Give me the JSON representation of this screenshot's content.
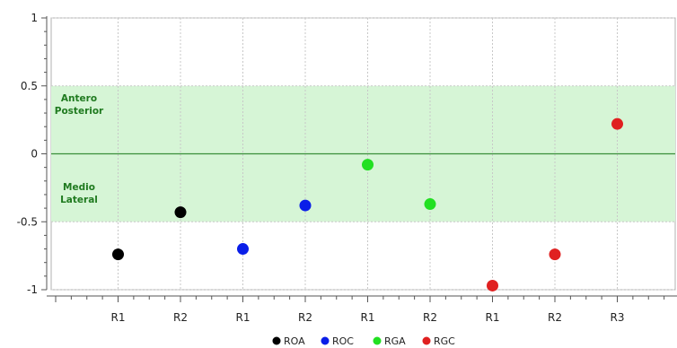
{
  "chart_data": {
    "type": "scatter",
    "ylim": [
      -1,
      1
    ],
    "yticks": [
      1,
      0.5,
      0,
      -0.5,
      -1
    ],
    "ytick_labels": [
      "1",
      "0.5",
      "0",
      "-0.5",
      "-1"
    ],
    "x_labels": [
      "R1",
      "R2",
      "R1",
      "R2",
      "R1",
      "R2",
      "R1",
      "R2",
      "R3"
    ],
    "grid": true,
    "band": {
      "from": -0.5,
      "to": 0.5,
      "color": "#d6f5d6"
    },
    "zero_line_color": "#3a8f3a",
    "annotations": [
      {
        "lines": [
          "Antero",
          "Posterior"
        ],
        "y": 0.2
      },
      {
        "lines": [
          "Medio",
          "Lateral"
        ],
        "y": -0.2
      }
    ],
    "legend_position": "bottom",
    "series": [
      {
        "name": "ROA",
        "color": "#000000",
        "points": [
          {
            "x": 1,
            "y": -0.74
          },
          {
            "x": 2,
            "y": -0.43
          }
        ]
      },
      {
        "name": "ROC",
        "color": "#0a1ee8",
        "points": [
          {
            "x": 3,
            "y": -0.7
          },
          {
            "x": 4,
            "y": -0.38
          }
        ]
      },
      {
        "name": "RGA",
        "color": "#22e022",
        "points": [
          {
            "x": 5,
            "y": -0.08
          },
          {
            "x": 6,
            "y": -0.37
          }
        ]
      },
      {
        "name": "RGC",
        "color": "#e02020",
        "points": [
          {
            "x": 7,
            "y": -0.97
          },
          {
            "x": 8,
            "y": -0.74
          },
          {
            "x": 9,
            "y": 0.22
          }
        ]
      }
    ]
  }
}
